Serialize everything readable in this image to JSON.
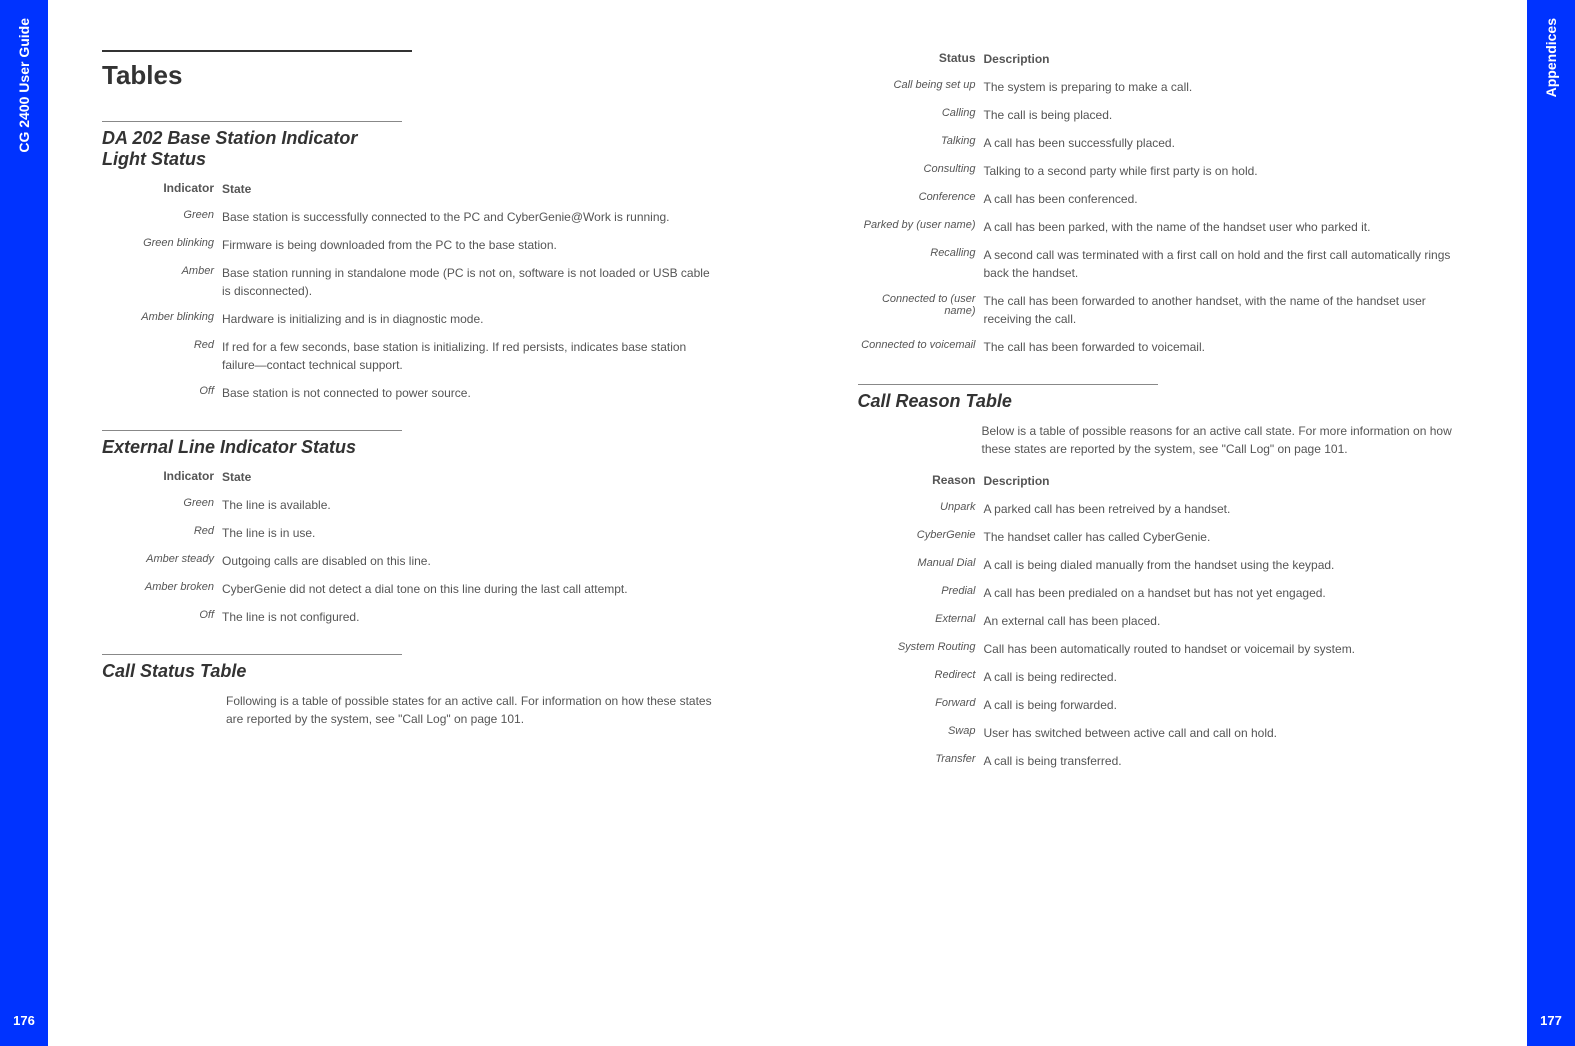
{
  "leftPage": {
    "sidebarLabel": "CG 2400 User Guide",
    "pageNumber": "176",
    "title": "Tables",
    "sections": [
      {
        "heading": "DA 202 Base Station Indicator Light Status",
        "headerLabel": "Indicator",
        "headerValue": "State",
        "rows": [
          {
            "label": "Green",
            "value": "Base station is successfully connected to the PC and CyberGenie@Work is running."
          },
          {
            "label": "Green blinking",
            "value": "Firmware is being downloaded from the PC to the base station."
          },
          {
            "label": "Amber",
            "value": "Base station running in standalone mode (PC is not on, software is not loaded or USB cable is disconnected)."
          },
          {
            "label": "Amber blinking",
            "value": "Hardware is initializing and is in diagnostic mode."
          },
          {
            "label": "Red",
            "value": "If red for a few seconds, base station is initializing. If red persists, indicates base station failure—contact technical support."
          },
          {
            "label": "Off",
            "value": "Base station is not connected to power source."
          }
        ]
      },
      {
        "heading": "External Line Indicator Status",
        "headerLabel": "Indicator",
        "headerValue": "State",
        "rows": [
          {
            "label": "Green",
            "value": "The line is available."
          },
          {
            "label": "Red",
            "value": "The line is in use."
          },
          {
            "label": "Amber steady",
            "value": "Outgoing calls are disabled on this line."
          },
          {
            "label": "Amber broken",
            "value": "CyberGenie did not detect a dial tone on this line during the last call attempt."
          },
          {
            "label": "Off",
            "value": "The line is not configured."
          }
        ]
      },
      {
        "heading": "Call Status Table",
        "description": "Following is a table of possible states for an active call. For information on how these states are reported by the system, see \"Call Log\" on page 101."
      }
    ]
  },
  "rightPage": {
    "sidebarLabel": "Appendices",
    "pageNumber": "177",
    "sections": [
      {
        "headerLabel": "Status",
        "headerValue": "Description",
        "rows": [
          {
            "label": "Call being set up",
            "value": "The system is preparing to make a call."
          },
          {
            "label": "Calling",
            "value": "The call is being placed."
          },
          {
            "label": "Talking",
            "value": "A call has been successfully placed."
          },
          {
            "label": "Consulting",
            "value": "Talking to a second party while first party is on hold."
          },
          {
            "label": "Conference",
            "value": "A call has been conferenced."
          },
          {
            "label": "Parked by (user name)",
            "value": "A call has been parked, with the name of the handset user who parked it."
          },
          {
            "label": "Recalling",
            "value": "A second call was terminated with a first call on hold and the first call automatically rings back the handset."
          },
          {
            "label": "Connected to (user name)",
            "value": "The call has been forwarded to another handset, with the name of the handset user receiving the call."
          },
          {
            "label": "Connected to voicemail",
            "value": "The call has been forwarded to voicemail."
          }
        ]
      },
      {
        "heading": "Call Reason Table",
        "description": "Below is a table of possible reasons for an active call state. For more information on how these states are reported by the system, see \"Call Log\" on page 101.",
        "headerLabel": "Reason",
        "headerValue": "Description",
        "rows": [
          {
            "label": "Unpark",
            "value": "A parked call has been retreived by a handset."
          },
          {
            "label": "CyberGenie",
            "value": "The handset caller has called CyberGenie."
          },
          {
            "label": "Manual Dial",
            "value": "A call is being dialed manually from the handset using the keypad."
          },
          {
            "label": "Predial",
            "value": "A call has been predialed on a handset but has not yet engaged."
          },
          {
            "label": "External",
            "value": "An external call has been placed."
          },
          {
            "label": "System Routing",
            "value": "Call has been automatically routed to handset or voicemail by system."
          },
          {
            "label": "Redirect",
            "value": "A call is being redirected."
          },
          {
            "label": "Forward",
            "value": "A call is being forwarded."
          },
          {
            "label": "Swap",
            "value": "User has switched between active call and call on hold."
          },
          {
            "label": "Transfer",
            "value": "A call is being transferred."
          }
        ]
      }
    ]
  }
}
